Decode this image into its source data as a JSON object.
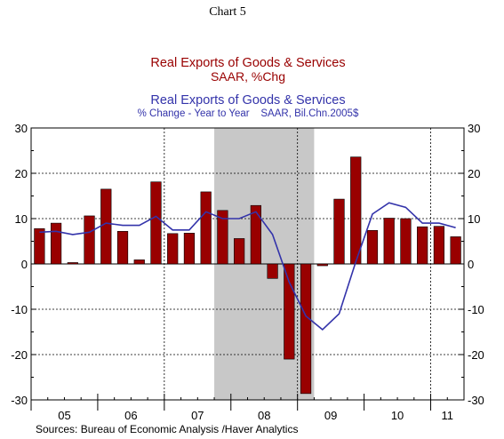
{
  "header": {
    "chart_number": "Chart 5"
  },
  "chart_data": {
    "type": "bar",
    "title_bars": "Real Exports of Goods & Services",
    "subtitle_bars": "SAAR, %Chg",
    "title_line": "Real Exports of Goods & Services",
    "subtitle_line": "% Change - Year to Year    SAAR, Bil.Chn.2005$",
    "source": "Sources:  Bureau of Economic Analysis /Haver Analytics",
    "x_tick_labels": [
      "05",
      "06",
      "07",
      "08",
      "09",
      "10",
      "11"
    ],
    "y_tick_labels": [
      "30",
      "20",
      "10",
      "0",
      "-10",
      "-20",
      "-30"
    ],
    "ylim": [
      -30,
      30
    ],
    "grid": "dashed",
    "recession_shading": {
      "start_quarter_index": 11,
      "end_quarter_index": 17
    },
    "quarters": [
      "2005Q1",
      "2005Q2",
      "2005Q3",
      "2005Q4",
      "2006Q1",
      "2006Q2",
      "2006Q3",
      "2006Q4",
      "2007Q1",
      "2007Q2",
      "2007Q3",
      "2007Q4",
      "2008Q1",
      "2008Q2",
      "2008Q3",
      "2008Q4",
      "2009Q1",
      "2009Q2",
      "2009Q3",
      "2009Q4",
      "2010Q1",
      "2010Q2",
      "2010Q3",
      "2010Q4",
      "2011Q1",
      "2011Q2"
    ],
    "series": [
      {
        "kind": "bar",
        "color": "#990000",
        "values": [
          7.8,
          9.0,
          0.3,
          10.6,
          16.5,
          7.2,
          0.9,
          18.1,
          6.7,
          6.8,
          15.9,
          11.8,
          5.6,
          12.9,
          -3.2,
          -21.0,
          -28.6,
          -0.4,
          14.3,
          23.6,
          7.4,
          10.1,
          10.0,
          8.2,
          8.3,
          6.0
        ]
      },
      {
        "kind": "line",
        "color": "#3333aa",
        "values": [
          7.0,
          7.2,
          6.5,
          7.0,
          9.0,
          8.5,
          8.5,
          10.5,
          7.5,
          7.5,
          11.5,
          10.0,
          10.0,
          11.5,
          6.5,
          -4.0,
          -11.5,
          -14.5,
          -11.0,
          0.5,
          11.0,
          13.5,
          12.5,
          9.0,
          9.0,
          8.0
        ]
      }
    ]
  }
}
